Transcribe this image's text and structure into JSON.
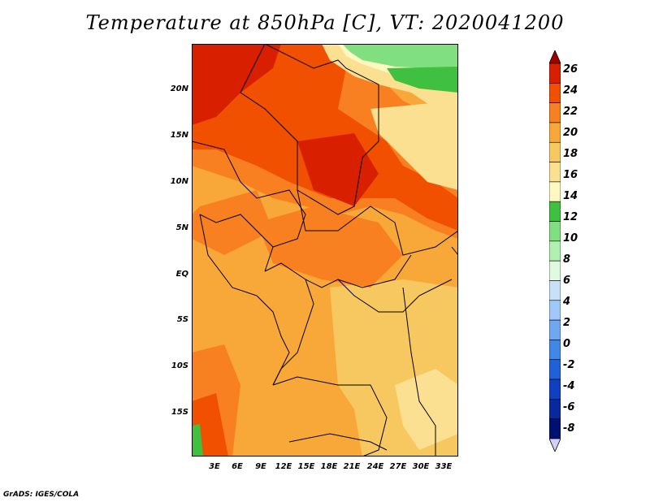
{
  "title": "Temperature at 850hPa [C], VT: 2020041200",
  "credit": "GrADS: IGES/COLA",
  "map": {
    "lat_labels": [
      "20N",
      "15N",
      "10N",
      "5N",
      "EQ",
      "5S",
      "10S",
      "15S"
    ],
    "lon_labels": [
      "3E",
      "6E",
      "9E",
      "12E",
      "15E",
      "18E",
      "21E",
      "24E",
      "27E",
      "30E",
      "33E"
    ]
  },
  "colorbar": {
    "labels": [
      "26",
      "24",
      "22",
      "20",
      "18",
      "16",
      "14",
      "12",
      "10",
      "8",
      "6",
      "4",
      "2",
      "0",
      "-2",
      "-4",
      "-6",
      "-8"
    ],
    "colors": [
      "#a00000",
      "#d82000",
      "#f05000",
      "#f88020",
      "#f8a838",
      "#f8c860",
      "#fae090",
      "#fff8c0",
      "#40c040",
      "#80e080",
      "#b0f0b0",
      "#e0fae0",
      "#c8e0f8",
      "#a0c8f8",
      "#70a8f0",
      "#4088e8",
      "#2060d8",
      "#1040c0",
      "#0828a0",
      "#001070",
      "#d0d0f8"
    ]
  }
}
